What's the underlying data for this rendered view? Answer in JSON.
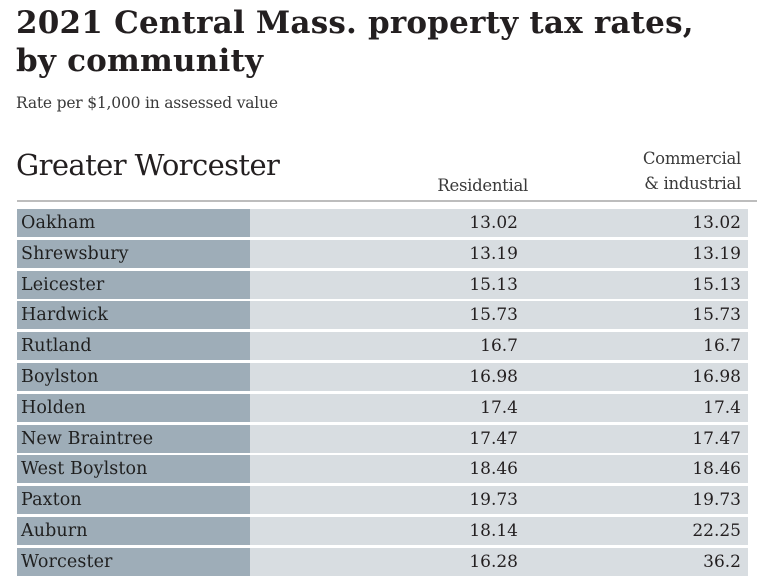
{
  "chart_data": {
    "type": "table",
    "title": "2021 Central Mass. property tax rates, by community",
    "subtitle": "Rate per $1,000 in assessed value",
    "section": "Greater Worcester",
    "columns": [
      "Residential",
      "Commercial & industrial"
    ],
    "column_headers": {
      "residential": "Residential",
      "commercial_line1": "Commercial",
      "commercial_line2": "& industrial"
    },
    "rows": [
      {
        "community": "Oakham",
        "residential": "13.02",
        "commercial": "13.02"
      },
      {
        "community": "Shrewsbury",
        "residential": "13.19",
        "commercial": "13.19"
      },
      {
        "community": "Leicester",
        "residential": "15.13",
        "commercial": "15.13"
      },
      {
        "community": "Hardwick",
        "residential": "15.73",
        "commercial": "15.73"
      },
      {
        "community": "Rutland",
        "residential": "16.7",
        "commercial": "16.7"
      },
      {
        "community": "Boylston",
        "residential": "16.98",
        "commercial": "16.98"
      },
      {
        "community": "Holden",
        "residential": "17.4",
        "commercial": "17.4"
      },
      {
        "community": "New Braintree",
        "residential": "17.47",
        "commercial": "17.47"
      },
      {
        "community": "West Boylston",
        "residential": "18.46",
        "commercial": "18.46"
      },
      {
        "community": "Paxton",
        "residential": "19.73",
        "commercial": "19.73"
      },
      {
        "community": "Auburn",
        "residential": "18.14",
        "commercial": "22.25"
      },
      {
        "community": "Worcester",
        "residential": "16.28",
        "commercial": "36.2"
      }
    ],
    "colors": {
      "name_cell": "#9eadb8",
      "value_cell": "#d8dde1",
      "text": "#231f20"
    }
  },
  "header": {
    "title_line1": "2021 Central Mass. property tax rates,",
    "title_line2": "by community",
    "subtitle": "Rate per $1,000 in assessed value",
    "section": "Greater Worcester"
  }
}
